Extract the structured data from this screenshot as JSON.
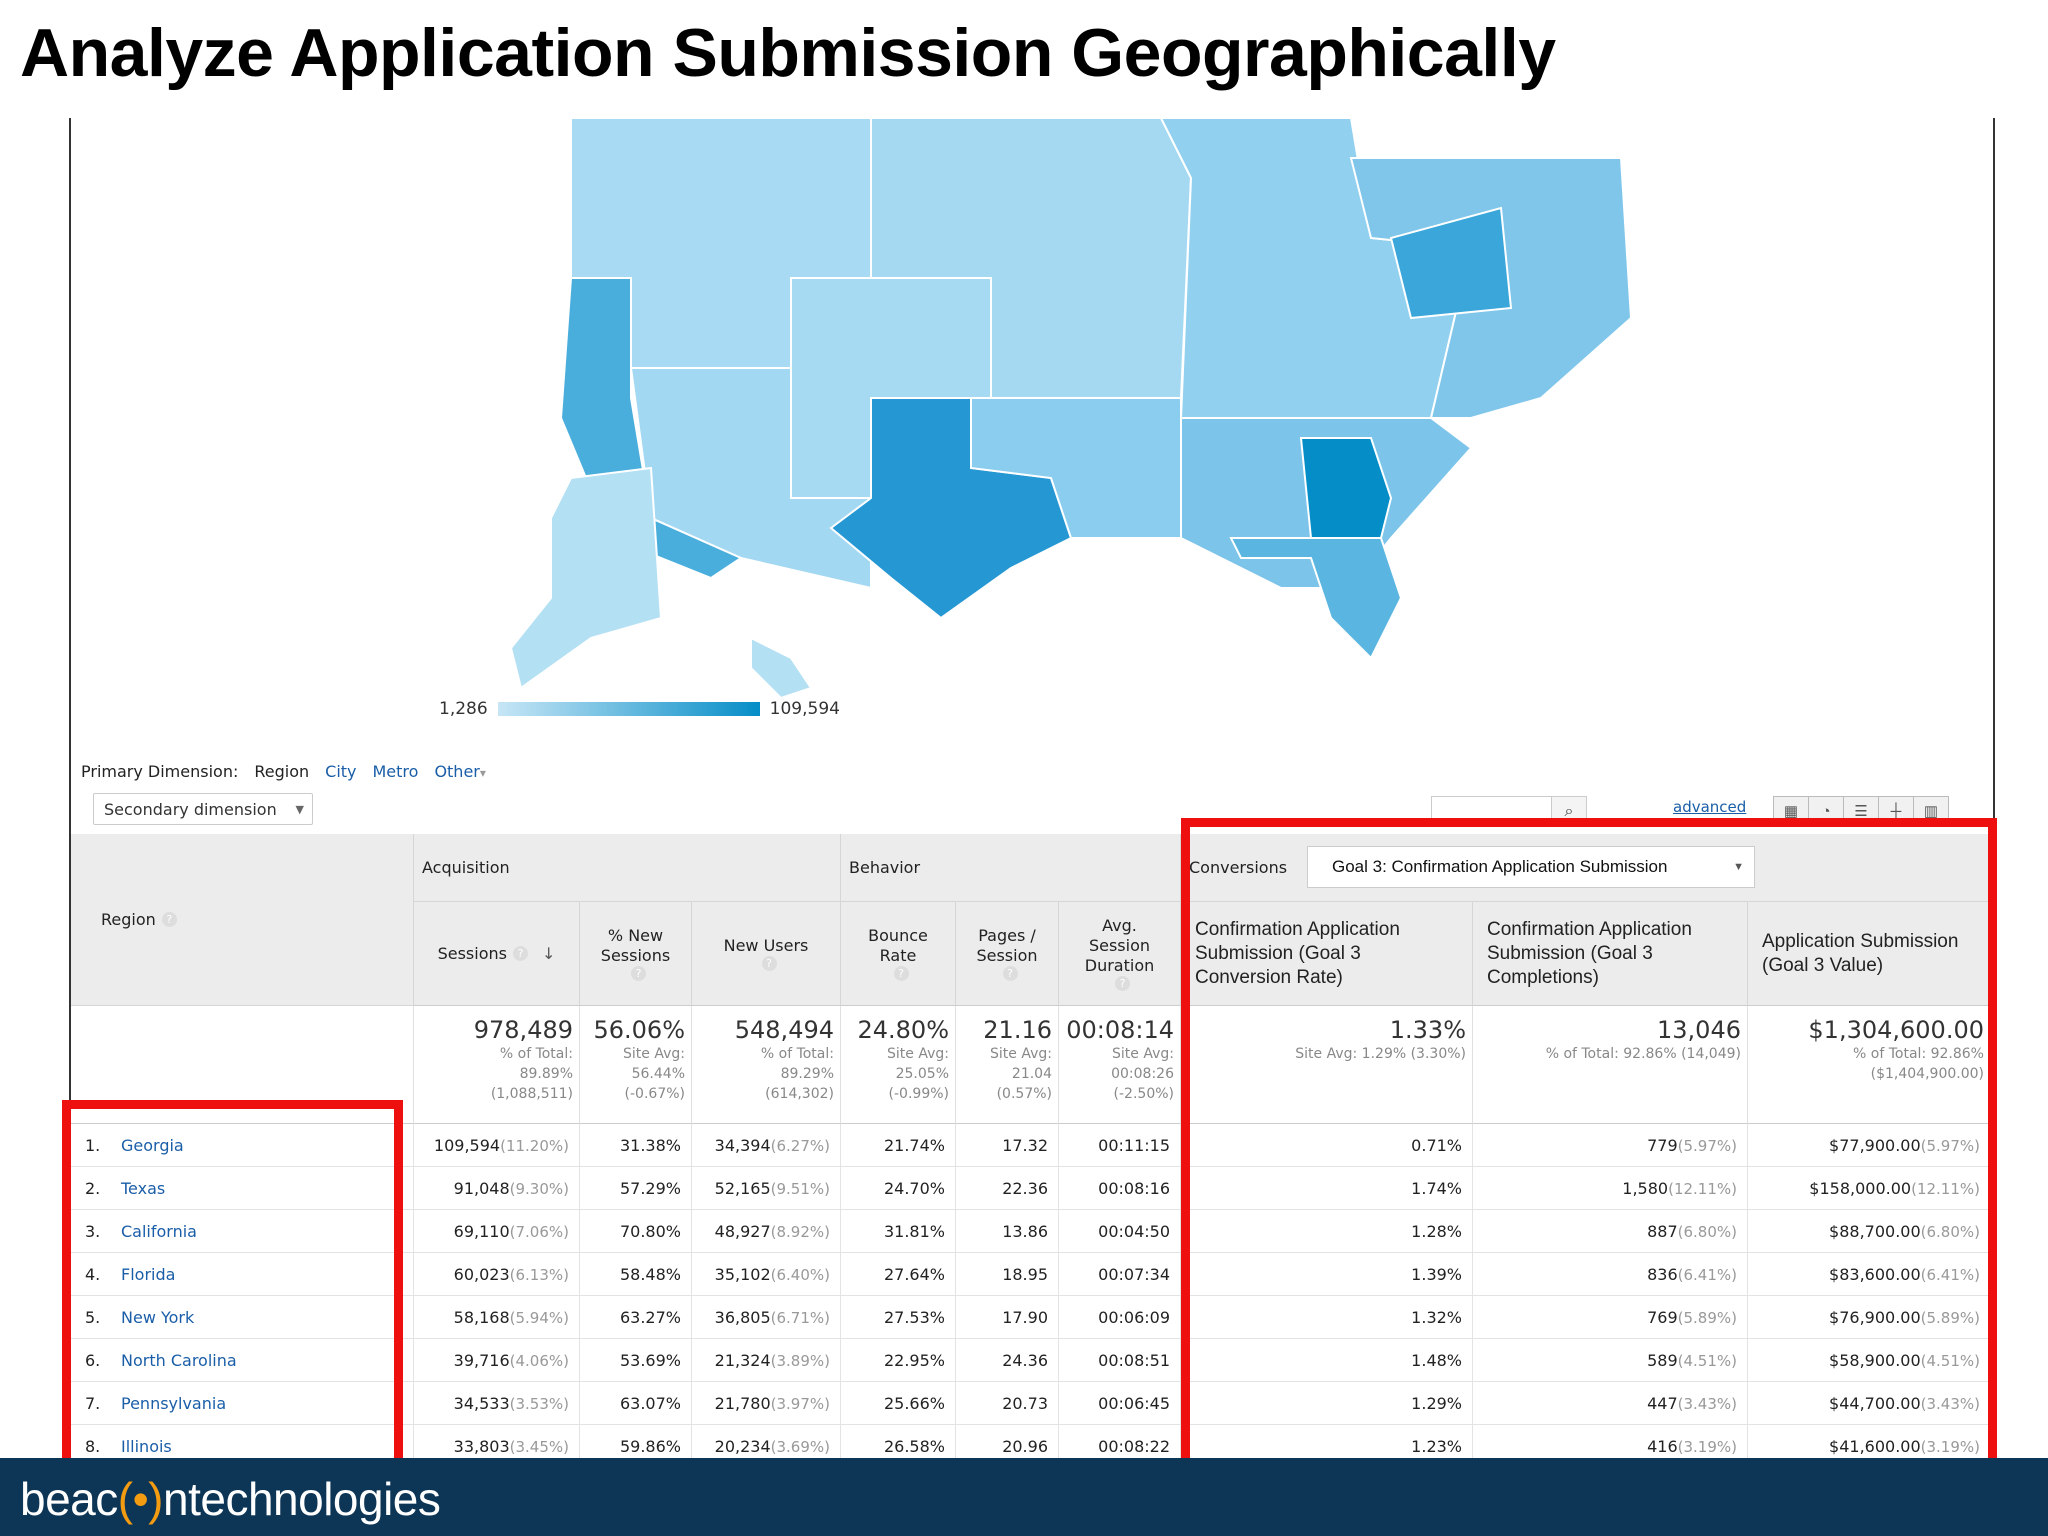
{
  "slide": {
    "title": "Analyze Application Submission Geographically",
    "logo_text_left": "beac",
    "logo_mark": "(•)",
    "logo_text_right": "ntechnologies"
  },
  "map": {
    "legend_min": "1,286",
    "legend_max": "109,594",
    "color_low": "#c7e6f6",
    "color_high": "#058dc7"
  },
  "dimensions": {
    "label": "Primary Dimension:",
    "current": "Region",
    "options": [
      "City",
      "Metro",
      "Other"
    ],
    "other_caret": "▾",
    "secondary": "Secondary dimension",
    "advanced": "advanced"
  },
  "table": {
    "region_header": "Region",
    "groups": {
      "acquisition": "Acquisition",
      "behavior": "Behavior",
      "conversions": "Conversions"
    },
    "goal_select": "Goal 3: Confirmation Application Submission",
    "columns": {
      "sessions": "Sessions",
      "new_sessions": "% New Sessions",
      "new_users": "New Users",
      "bounce": "Bounce Rate",
      "pages": "Pages / Session",
      "duration": "Avg. Session Duration",
      "conv_rate": "Confirmation Application Submission (Goal 3 Conversion Rate)",
      "completions": "Confirmation Application Submission (Goal 3 Completions)",
      "value": "Application Submission (Goal 3 Value)"
    },
    "totals": {
      "sessions": {
        "big": "978,489",
        "l1": "% of Total:",
        "l2": "89.89%",
        "l3": "(1,088,511)"
      },
      "new_sessions": {
        "big": "56.06%",
        "l1": "Site Avg:",
        "l2": "56.44%",
        "l3": "(-0.67%)"
      },
      "new_users": {
        "big": "548,494",
        "l1": "% of Total:",
        "l2": "89.29%",
        "l3": "(614,302)"
      },
      "bounce": {
        "big": "24.80%",
        "l1": "Site Avg:",
        "l2": "25.05%",
        "l3": "(-0.99%)"
      },
      "pages": {
        "big": "21.16",
        "l1": "Site Avg:",
        "l2": "21.04",
        "l3": "(0.57%)"
      },
      "duration": {
        "big": "00:08:14",
        "l1": "Site Avg:",
        "l2": "00:08:26",
        "l3": "(-2.50%)"
      },
      "conv_rate": {
        "big": "1.33%",
        "l1": "Site Avg: 1.29% (3.30%)"
      },
      "completions": {
        "big": "13,046",
        "l1": "% of Total: 92.86% (14,049)"
      },
      "value": {
        "big": "$1,304,600.00",
        "l1": "% of Total: 92.86%",
        "l2": "($1,404,900.00)"
      }
    },
    "rows": [
      {
        "num": "1.",
        "region": "Georgia",
        "sessions": "109,594",
        "sessions_pct": "(11.20%)",
        "new_sessions": "31.38%",
        "new_users": "34,394",
        "new_users_pct": "(6.27%)",
        "bounce": "21.74%",
        "pages": "17.32",
        "duration": "00:11:15",
        "conv_rate": "0.71%",
        "completions": "779",
        "completions_pct": "(5.97%)",
        "value": "$77,900.00",
        "value_pct": "(5.97%)"
      },
      {
        "num": "2.",
        "region": "Texas",
        "sessions": "91,048",
        "sessions_pct": "(9.30%)",
        "new_sessions": "57.29%",
        "new_users": "52,165",
        "new_users_pct": "(9.51%)",
        "bounce": "24.70%",
        "pages": "22.36",
        "duration": "00:08:16",
        "conv_rate": "1.74%",
        "completions": "1,580",
        "completions_pct": "(12.11%)",
        "value": "$158,000.00",
        "value_pct": "(12.11%)"
      },
      {
        "num": "3.",
        "region": "California",
        "sessions": "69,110",
        "sessions_pct": "(7.06%)",
        "new_sessions": "70.80%",
        "new_users": "48,927",
        "new_users_pct": "(8.92%)",
        "bounce": "31.81%",
        "pages": "13.86",
        "duration": "00:04:50",
        "conv_rate": "1.28%",
        "completions": "887",
        "completions_pct": "(6.80%)",
        "value": "$88,700.00",
        "value_pct": "(6.80%)"
      },
      {
        "num": "4.",
        "region": "Florida",
        "sessions": "60,023",
        "sessions_pct": "(6.13%)",
        "new_sessions": "58.48%",
        "new_users": "35,102",
        "new_users_pct": "(6.40%)",
        "bounce": "27.64%",
        "pages": "18.95",
        "duration": "00:07:34",
        "conv_rate": "1.39%",
        "completions": "836",
        "completions_pct": "(6.41%)",
        "value": "$83,600.00",
        "value_pct": "(6.41%)"
      },
      {
        "num": "5.",
        "region": "New York",
        "sessions": "58,168",
        "sessions_pct": "(5.94%)",
        "new_sessions": "63.27%",
        "new_users": "36,805",
        "new_users_pct": "(6.71%)",
        "bounce": "27.53%",
        "pages": "17.90",
        "duration": "00:06:09",
        "conv_rate": "1.32%",
        "completions": "769",
        "completions_pct": "(5.89%)",
        "value": "$76,900.00",
        "value_pct": "(5.89%)"
      },
      {
        "num": "6.",
        "region": "North Carolina",
        "sessions": "39,716",
        "sessions_pct": "(4.06%)",
        "new_sessions": "53.69%",
        "new_users": "21,324",
        "new_users_pct": "(3.89%)",
        "bounce": "22.95%",
        "pages": "24.36",
        "duration": "00:08:51",
        "conv_rate": "1.48%",
        "completions": "589",
        "completions_pct": "(4.51%)",
        "value": "$58,900.00",
        "value_pct": "(4.51%)"
      },
      {
        "num": "7.",
        "region": "Pennsylvania",
        "sessions": "34,533",
        "sessions_pct": "(3.53%)",
        "new_sessions": "63.07%",
        "new_users": "21,780",
        "new_users_pct": "(3.97%)",
        "bounce": "25.66%",
        "pages": "20.73",
        "duration": "00:06:45",
        "conv_rate": "1.29%",
        "completions": "447",
        "completions_pct": "(3.43%)",
        "value": "$44,700.00",
        "value_pct": "(3.43%)"
      },
      {
        "num": "8.",
        "region": "Illinois",
        "sessions": "33,803",
        "sessions_pct": "(3.45%)",
        "new_sessions": "59.86%",
        "new_users": "20,234",
        "new_users_pct": "(3.69%)",
        "bounce": "26.58%",
        "pages": "20.96",
        "duration": "00:08:22",
        "conv_rate": "1.23%",
        "completions": "416",
        "completions_pct": "(3.19%)",
        "value": "$41,600.00",
        "value_pct": "(3.19%)"
      }
    ]
  },
  "highlight_color": "#ee0f0f"
}
